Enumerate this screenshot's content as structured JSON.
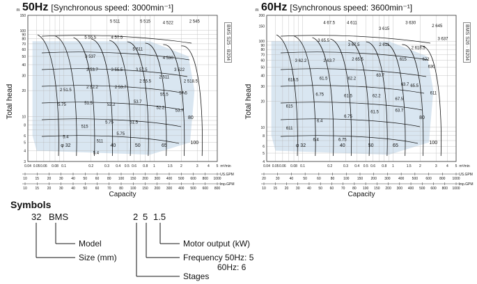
{
  "chart_data": [
    {
      "type": "line",
      "title": "50Hz",
      "subtitle": "[Synchronous speed:  3000min⁻¹]",
      "ylabel": "Total head",
      "xlabel": "Capacity",
      "y_unit": "m",
      "x_unit": "m³/min",
      "x_scale": "log",
      "y_scale": "log",
      "xlim": [
        0.04,
        5
      ],
      "ylim": [
        3,
        150
      ],
      "y_ticks": [
        150,
        100,
        90,
        80,
        70,
        60,
        50,
        40,
        30,
        20,
        10,
        8,
        6,
        5,
        4,
        3
      ],
      "x_ticks": [
        "0.04",
        "0.05",
        "0.06",
        "0.08",
        "0.1",
        "0.2",
        "0.3",
        "0.4",
        "0.5",
        "0.6",
        "0.8",
        "1",
        "1.5",
        "2",
        "3",
        "4",
        "5"
      ],
      "usgpm_ticks": [
        "10",
        "15",
        "20",
        "30",
        "40",
        "50",
        "60",
        "80",
        "100",
        "150",
        "200",
        "300",
        "400",
        "500",
        "600",
        "800",
        "1000"
      ],
      "impgpm_ticks": [
        "10",
        "15",
        "20",
        "30",
        "40",
        "50",
        "60",
        "70",
        "80",
        "100",
        "150",
        "200",
        "300",
        "400",
        "500",
        "600",
        "800"
      ],
      "usgpm_unit": "US.GPM",
      "impgpm_unit": "Imp.GPM",
      "bore_labels": [
        "φ 32",
        "40",
        "50",
        "65",
        "80",
        "100"
      ],
      "region_labels": [
        "5 511",
        "5 515",
        "4 522",
        "2 545",
        "5 55.5",
        "4 57.5",
        "5 511",
        "3 537",
        "4 530",
        "3 53.7",
        "3 55.5",
        "3 57.5",
        "3 522",
        "2 51.5",
        "2 52.2",
        "2 53.7",
        "2 55.5",
        "2 511",
        "2 518.5",
        "5.75",
        "51.5",
        "52.2",
        "53.7",
        "55.5",
        "57.5",
        "515",
        "5.75",
        "51.5",
        "52.2",
        "53.7",
        "511",
        "5.75",
        "5.4",
        "5.4"
      ],
      "side_note": "BMS  S25 · B204"
    },
    {
      "type": "line",
      "title": "60Hz",
      "subtitle": "[Synchronous speed:  3600min⁻¹]",
      "ylabel": "Total head",
      "xlabel": "Capacity",
      "y_unit": "m",
      "x_unit": "m³/min",
      "x_scale": "log",
      "y_scale": "log",
      "xlim": [
        0.04,
        5
      ],
      "ylim": [
        4,
        200
      ],
      "y_ticks": [
        200,
        150,
        100,
        90,
        80,
        70,
        60,
        50,
        40,
        30,
        20,
        10,
        8,
        6,
        5,
        4
      ],
      "x_ticks": [
        "0.04",
        "0.05",
        "0.06",
        "0.08",
        "0.1",
        "0.2",
        "0.3",
        "0.4",
        "0.5",
        "0.6",
        "0.8",
        "1",
        "1.5",
        "2",
        "3",
        "4",
        "5"
      ],
      "usgpm_ticks": [
        "20",
        "30",
        "40",
        "50",
        "60",
        "80",
        "100",
        "150",
        "200",
        "300",
        "400",
        "500",
        "600",
        "800",
        "1000"
      ],
      "impgpm_ticks": [
        "10",
        "15",
        "20",
        "30",
        "40",
        "50",
        "60",
        "70",
        "80",
        "100",
        "150",
        "200",
        "300",
        "400",
        "500",
        "600",
        "800",
        "1000"
      ],
      "usgpm_unit": "US.GPM",
      "impgpm_unit": "Imp.GPM",
      "bore_labels": [
        "φ 32",
        "40",
        "50",
        "65",
        "80",
        "100"
      ],
      "region_labels": [
        "4 67.5",
        "4 611",
        "3 615",
        "3 630",
        "2 645",
        "3 65.5",
        "3 67.5",
        "2 611",
        "2 618.5",
        "3 637",
        "3 62.2",
        "2 63.7",
        "2 65.5",
        "615",
        "622",
        "630",
        "618.5",
        "61.5",
        "62.2",
        "63.7",
        "65.5",
        "611",
        "615",
        "6.75",
        "61.5",
        "62.2",
        "63.7",
        "67.5",
        "611",
        "6.4",
        "6.75",
        "61.5",
        "63.7",
        "6.4",
        "6.75"
      ],
      "side_note": "BMS  S26 · B204"
    }
  ],
  "symbols": {
    "title": "Symbols",
    "code_left_a": "32",
    "code_left_b": "BMS",
    "code_right_a": "2",
    "code_right_b": "5",
    "code_right_c": "1.5",
    "model": "Model",
    "size": "Size (mm)",
    "motor": "Motor output (kW)",
    "frequency_50": "Frequency 50Hz:  5",
    "frequency_60": "60Hz:  6",
    "stages": "Stages"
  },
  "colors": {
    "shade": "#d9e6f1",
    "grid": "#b8b8b8",
    "line": "#111111"
  }
}
